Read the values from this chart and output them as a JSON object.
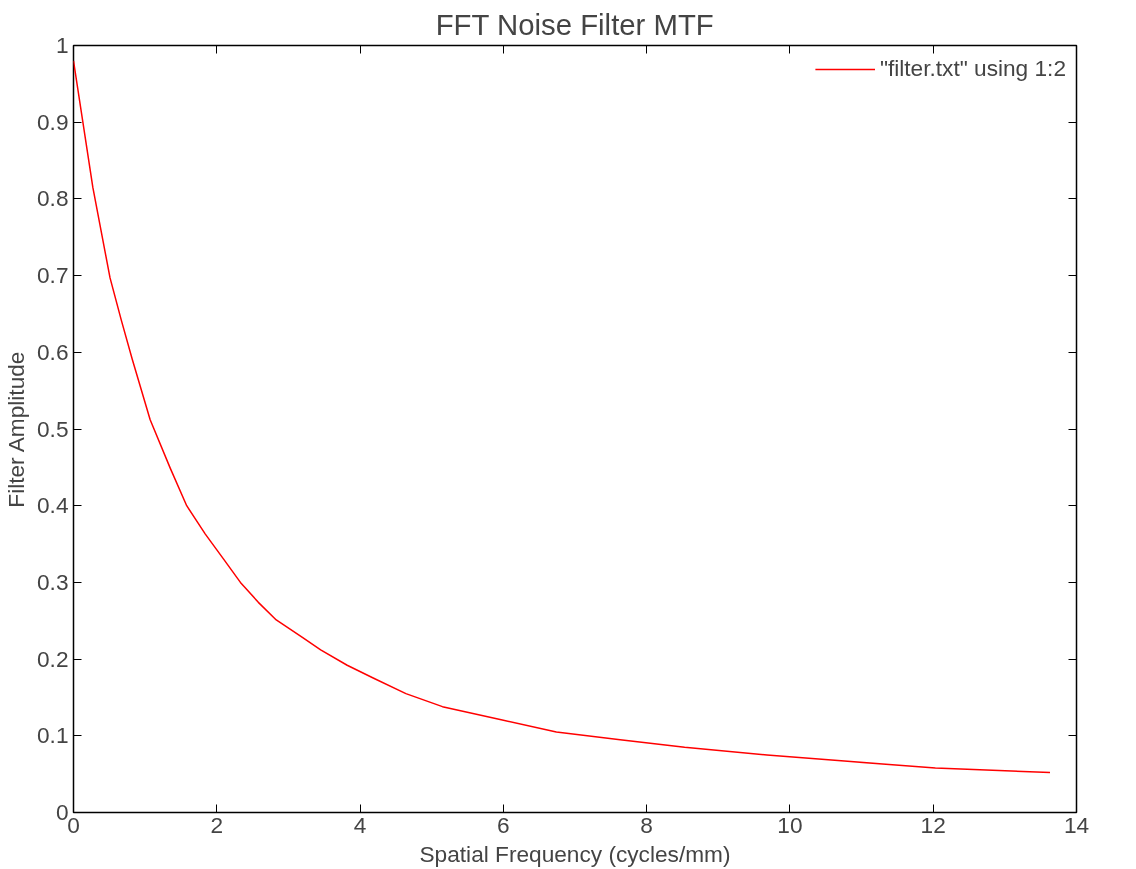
{
  "chart_data": {
    "type": "line",
    "title": "FFT Noise Filter MTF",
    "xlabel": "Spatial Frequency (cycles/mm)",
    "ylabel": "Filter Amplitude",
    "xlim": [
      0,
      14
    ],
    "ylim": [
      0,
      1
    ],
    "xticks": [
      0,
      2,
      4,
      6,
      8,
      10,
      12,
      14
    ],
    "yticks": [
      0,
      0.1,
      0.2,
      0.3,
      0.4,
      0.5,
      0.6,
      0.7,
      0.8,
      0.9,
      1
    ],
    "grid": false,
    "legend": "top right",
    "marker": "none",
    "line_style": "solid",
    "series": [
      {
        "name": "\"filter.txt\" using 1:2",
        "color": "#ff0000",
        "x": [
          0,
          0.27,
          0.51,
          0.67,
          0.82,
          1.07,
          1.35,
          1.58,
          1.84,
          2.09,
          2.33,
          2.58,
          2.83,
          3.2,
          3.45,
          3.82,
          4.19,
          4.64,
          5.15,
          5.97,
          6.74,
          7.63,
          8.53,
          9.68,
          10.76,
          12.03,
          13.63
        ],
        "values": [
          0.98,
          0.815,
          0.697,
          0.641,
          0.591,
          0.512,
          0.449,
          0.4,
          0.363,
          0.331,
          0.3,
          0.274,
          0.251,
          0.228,
          0.212,
          0.192,
          0.175,
          0.155,
          0.138,
          0.121,
          0.105,
          0.095,
          0.085,
          0.075,
          0.067,
          0.058,
          0.052
        ]
      }
    ]
  }
}
